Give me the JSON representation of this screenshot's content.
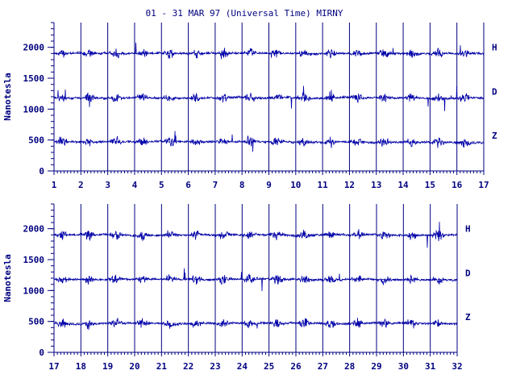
{
  "title": "01 - 31 MAR 97 (Universal Time) MIRNY",
  "ylabel": "Nanotesla",
  "colors": {
    "ink": "#000080",
    "trace": "#0000aa",
    "background": "#ffffff"
  },
  "chart_data": [
    {
      "type": "line",
      "xlabel": "",
      "ylabel": "Nanotesla",
      "xlim": [
        1,
        17
      ],
      "ylim": [
        0,
        2400
      ],
      "x_ticks": [
        "1",
        "2",
        "3",
        "4",
        "5",
        "6",
        "7",
        "8",
        "9",
        "10",
        "11",
        "12",
        "13",
        "14",
        "15",
        "16",
        "17"
      ],
      "y_ticks": [
        "0",
        "500",
        "1000",
        "1500",
        "2000"
      ],
      "grid": "vertical lines at each day",
      "series": [
        {
          "name": "H",
          "baseline": 1900
        },
        {
          "name": "D",
          "baseline": 1180
        },
        {
          "name": "Z",
          "baseline": 470
        }
      ]
    },
    {
      "type": "line",
      "xlabel": "",
      "ylabel": "Nanotesla",
      "xlim": [
        17,
        32
      ],
      "ylim": [
        0,
        2400
      ],
      "x_ticks": [
        "17",
        "18",
        "19",
        "20",
        "21",
        "22",
        "23",
        "24",
        "25",
        "26",
        "27",
        "28",
        "29",
        "30",
        "31",
        "32"
      ],
      "y_ticks": [
        "0",
        "500",
        "1000",
        "1500",
        "2000"
      ],
      "grid": "vertical lines at each day",
      "series": [
        {
          "name": "H",
          "baseline": 1900
        },
        {
          "name": "D",
          "baseline": 1180
        },
        {
          "name": "Z",
          "baseline": 470
        }
      ]
    }
  ]
}
